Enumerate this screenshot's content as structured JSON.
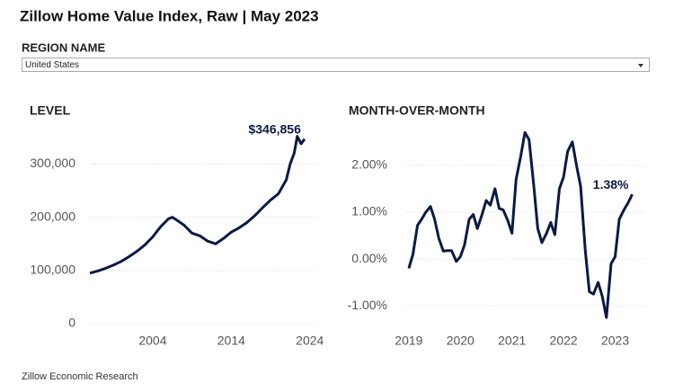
{
  "title": "Zillow Home Value Index, Raw | May 2023",
  "filter": {
    "label": "REGION NAME",
    "value": "United States"
  },
  "footer": "Zillow Economic Research",
  "chart_data": [
    {
      "type": "line",
      "title": "LEVEL",
      "x": [
        1996,
        1997,
        1998,
        1999,
        2000,
        2001,
        2002,
        2003,
        2004,
        2005,
        2006,
        2006.5,
        2007,
        2008,
        2009,
        2010,
        2011,
        2012,
        2013,
        2014,
        2015,
        2016,
        2017,
        2018,
        2019,
        2020,
        2021,
        2021.5,
        2022,
        2022.4,
        2022.9,
        2023.33
      ],
      "series": [
        {
          "name": "LEVEL",
          "color": "#0b1a45",
          "values": [
            95000,
            99000,
            104000,
            110000,
            117000,
            126000,
            136000,
            148000,
            163000,
            182000,
            197000,
            200000,
            195000,
            185000,
            170000,
            165000,
            155000,
            150000,
            160000,
            172000,
            180000,
            190000,
            203000,
            218000,
            232000,
            244000,
            270000,
            300000,
            320000,
            352000,
            338000,
            346856
          ],
          "value_labels": [
            null,
            null,
            null,
            null,
            null,
            null,
            null,
            null,
            null,
            null,
            null,
            null,
            null,
            null,
            null,
            null,
            null,
            null,
            null,
            null,
            null,
            null,
            null,
            null,
            null,
            null,
            null,
            null,
            null,
            null,
            null,
            "$346,856"
          ]
        }
      ],
      "xlim": [
        1996,
        2024.6
      ],
      "xticks": [
        2004,
        2014,
        2024
      ],
      "ylim": [
        0,
        380000
      ],
      "yticks": [
        0,
        {
          "value": 100000,
          "label": "100,000"
        },
        {
          "value": 200000,
          "label": "200,000"
        },
        {
          "value": 300000,
          "label": "300,000"
        }
      ],
      "grid": true
    },
    {
      "type": "line",
      "title": "MONTH-OVER-MONTH",
      "x": [
        2019.0,
        2019.08,
        2019.17,
        2019.25,
        2019.33,
        2019.42,
        2019.5,
        2019.58,
        2019.67,
        2019.75,
        2019.83,
        2019.92,
        2020.0,
        2020.08,
        2020.17,
        2020.25,
        2020.33,
        2020.42,
        2020.5,
        2020.58,
        2020.67,
        2020.75,
        2020.83,
        2020.92,
        2021.0,
        2021.08,
        2021.17,
        2021.25,
        2021.33,
        2021.42,
        2021.5,
        2021.58,
        2021.67,
        2021.75,
        2021.83,
        2021.92,
        2022.0,
        2022.08,
        2022.17,
        2022.25,
        2022.33,
        2022.42,
        2022.5,
        2022.58,
        2022.67,
        2022.75,
        2022.83,
        2022.92,
        2023.0,
        2023.08,
        2023.17,
        2023.25,
        2023.33
      ],
      "series": [
        {
          "name": "MONTH-OVER-MONTH",
          "color": "#0b1a45",
          "values": [
            -0.2,
            0.1,
            0.72,
            0.85,
            1.0,
            1.12,
            0.85,
            0.45,
            0.17,
            0.18,
            0.18,
            -0.05,
            0.05,
            0.3,
            0.85,
            0.95,
            0.65,
            0.95,
            1.25,
            1.15,
            1.5,
            1.08,
            1.05,
            0.82,
            0.55,
            1.7,
            2.2,
            2.7,
            2.55,
            1.6,
            0.65,
            0.35,
            0.55,
            0.78,
            0.52,
            1.5,
            1.75,
            2.3,
            2.5,
            2.0,
            1.55,
            0.2,
            -0.7,
            -0.75,
            -0.5,
            -0.8,
            -1.25,
            -0.1,
            0.05,
            0.85,
            1.05,
            1.2,
            1.38
          ],
          "value_labels": [
            null,
            null,
            null,
            null,
            null,
            null,
            null,
            null,
            null,
            null,
            null,
            null,
            null,
            null,
            null,
            null,
            null,
            null,
            null,
            null,
            null,
            null,
            null,
            null,
            null,
            null,
            null,
            null,
            null,
            null,
            null,
            null,
            null,
            null,
            null,
            null,
            null,
            null,
            null,
            null,
            null,
            null,
            null,
            null,
            null,
            null,
            null,
            null,
            null,
            null,
            null,
            null,
            "1.38%"
          ]
        }
      ],
      "xlim": [
        2018.95,
        2023.6
      ],
      "xticks": [
        2019,
        2020,
        2021,
        2022,
        2023
      ],
      "ylim": [
        -1.4,
        2.9
      ],
      "yticks": [
        {
          "value": -1,
          "label": "-1.00%"
        },
        {
          "value": 0,
          "label": "0.00%"
        },
        {
          "value": 1,
          "label": "1.00%"
        },
        {
          "value": 2,
          "label": "2.00%"
        }
      ],
      "grid": true
    }
  ]
}
